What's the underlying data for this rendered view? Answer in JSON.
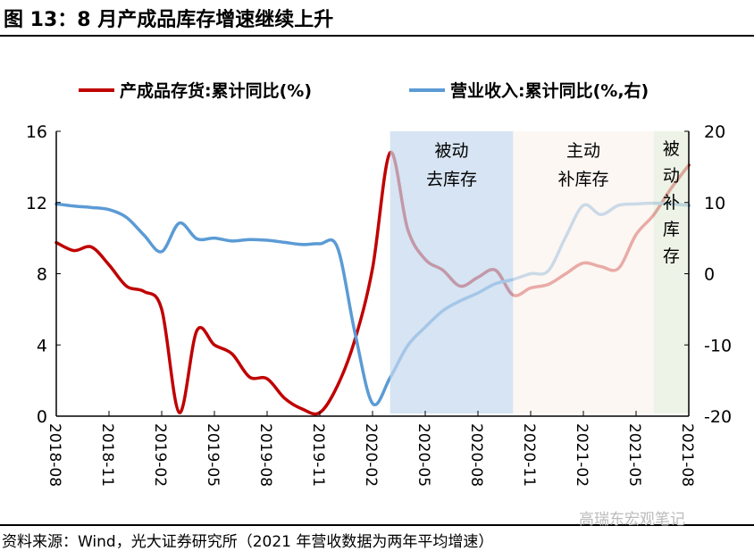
{
  "title": "图 13：8 月产成品库存增速继续上升",
  "source": "资料来源：Wind，光大证券研究所（2021 年营收数据为两年平均增速）",
  "watermark": "高瑞东宏观笔记",
  "chart_data": {
    "type": "line",
    "x": [
      "2018-08",
      "2018-09",
      "2018-10",
      "2018-11",
      "2018-12",
      "2019-01",
      "2019-02",
      "2019-03",
      "2019-04",
      "2019-05",
      "2019-06",
      "2019-07",
      "2019-08",
      "2019-09",
      "2019-10",
      "2019-11",
      "2019-12",
      "2020-01",
      "2020-02",
      "2020-03",
      "2020-04",
      "2020-05",
      "2020-06",
      "2020-07",
      "2020-08",
      "2020-09",
      "2020-10",
      "2020-11",
      "2020-12",
      "2021-01",
      "2021-02",
      "2021-03",
      "2021-04",
      "2021-05",
      "2021-06",
      "2021-07",
      "2021-08"
    ],
    "x_tick_labels": [
      "2018-08",
      "2018-11",
      "2019-02",
      "2019-05",
      "2019-08",
      "2019-11",
      "2020-02",
      "2020-05",
      "2020-08",
      "2020-11",
      "2021-02",
      "2021-05",
      "2021-08"
    ],
    "series": [
      {
        "name": "产成品存货:累计同比(%)",
        "axis": "left",
        "color": "#C00000",
        "values": [
          9.75,
          9.3,
          9.5,
          8.5,
          7.3,
          7.0,
          6.0,
          0.2,
          4.8,
          4.0,
          3.5,
          2.2,
          2.1,
          1.0,
          0.4,
          0.2,
          1.7,
          4.3,
          8.3,
          14.8,
          10.5,
          8.8,
          8.2,
          7.3,
          7.8,
          8.2,
          6.8,
          7.2,
          7.4,
          8.0,
          8.6,
          8.4,
          8.3,
          10.2,
          11.3,
          12.8,
          14.1
        ]
      },
      {
        "name": "营业收入:累计同比(%,右)",
        "axis": "right",
        "color": "#5B9BD5",
        "values": [
          9.8,
          9.5,
          9.3,
          9.0,
          7.9,
          5.4,
          3.1,
          7.1,
          4.9,
          5.0,
          4.6,
          4.8,
          4.7,
          4.4,
          4.1,
          4.2,
          3.7,
          -8.3,
          -18.2,
          -14.6,
          -10.1,
          -7.5,
          -5.2,
          -3.8,
          -2.7,
          -1.4,
          -0.8,
          0.0,
          0.4,
          5.2,
          9.6,
          8.3,
          9.6,
          9.8,
          9.9,
          9.8,
          9.6
        ]
      }
    ],
    "y_left": {
      "range": [
        0,
        16
      ],
      "ticks": [
        0,
        4,
        8,
        12,
        16
      ]
    },
    "y_right": {
      "range": [
        -20,
        20
      ],
      "ticks": [
        -20,
        -10,
        0,
        10,
        20
      ]
    },
    "grid": false,
    "legend": "top",
    "shaded_periods": [
      {
        "label": "被动\n去库存",
        "start": "2020-03",
        "end": "2020-10",
        "color": "#C5D8EE"
      },
      {
        "label": "主动\n补库存",
        "start": "2020-10",
        "end": "2021-06",
        "color": "#FBF4EE"
      },
      {
        "label": "被\n动\n补\n库\n存",
        "start": "2021-06",
        "end": "2021-08",
        "color": "#E6EEDC"
      }
    ]
  }
}
